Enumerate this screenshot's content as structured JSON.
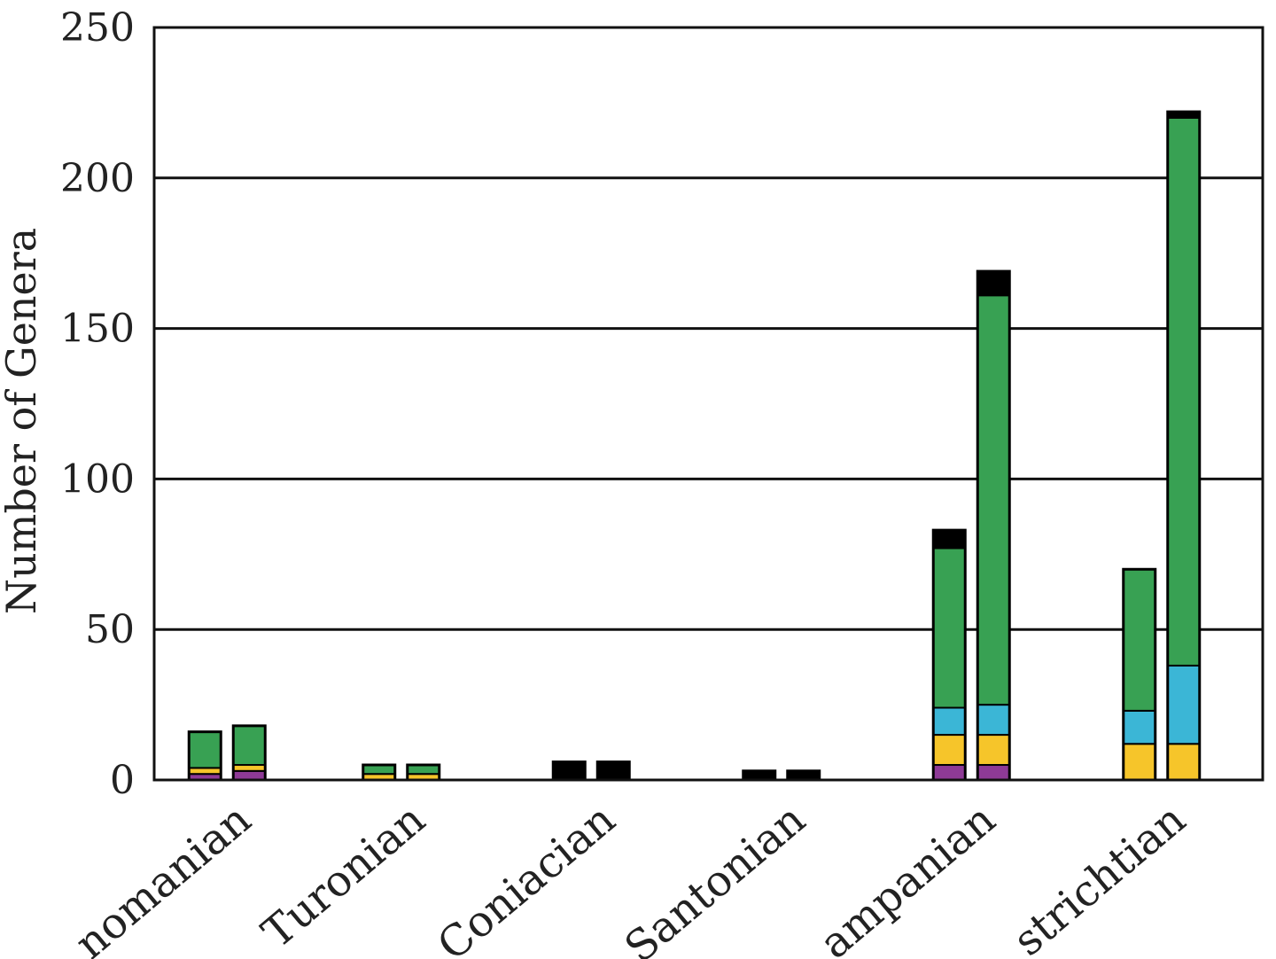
{
  "chart_data": {
    "type": "bar",
    "stacked": true,
    "grouped": true,
    "ylabel": "Number of Genera",
    "ylim": [
      0,
      250
    ],
    "yticks": [
      0,
      50,
      100,
      150,
      200,
      250
    ],
    "grid": true,
    "categories": [
      "nomanian",
      "Turonian",
      "Coniacian",
      "Santonian",
      "ampanian",
      "strichtian"
    ],
    "segment_colors": {
      "purple": "#8e3a96",
      "yellow": "#f6c52a",
      "blue": "#3bb6d6",
      "green": "#38a153",
      "black": "#000000"
    },
    "segment_order": [
      "purple",
      "yellow",
      "blue",
      "green",
      "black"
    ],
    "bars": [
      [
        {
          "purple": 2,
          "yellow": 2,
          "blue": 0,
          "green": 12,
          "black": 0
        },
        {
          "purple": 3,
          "yellow": 2,
          "blue": 0,
          "green": 13,
          "black": 0
        }
      ],
      [
        {
          "purple": 0,
          "yellow": 2,
          "blue": 0,
          "green": 3,
          "black": 0
        },
        {
          "purple": 0,
          "yellow": 2,
          "blue": 0,
          "green": 3,
          "black": 0
        }
      ],
      [
        {
          "purple": 0,
          "yellow": 0,
          "blue": 0,
          "green": 0,
          "black": 6
        },
        {
          "purple": 0,
          "yellow": 0,
          "blue": 0,
          "green": 0,
          "black": 6
        }
      ],
      [
        {
          "purple": 0,
          "yellow": 0,
          "blue": 0,
          "green": 0,
          "black": 3
        },
        {
          "purple": 0,
          "yellow": 0,
          "blue": 0,
          "green": 0,
          "black": 3
        }
      ],
      [
        {
          "purple": 5,
          "yellow": 10,
          "blue": 9,
          "green": 53,
          "black": 6
        },
        {
          "purple": 5,
          "yellow": 10,
          "blue": 10,
          "green": 136,
          "black": 8
        }
      ],
      [
        {
          "purple": 0,
          "yellow": 12,
          "blue": 11,
          "green": 47,
          "black": 0
        },
        {
          "purple": 0,
          "yellow": 12,
          "blue": 26,
          "green": 182,
          "black": 2
        }
      ]
    ]
  }
}
